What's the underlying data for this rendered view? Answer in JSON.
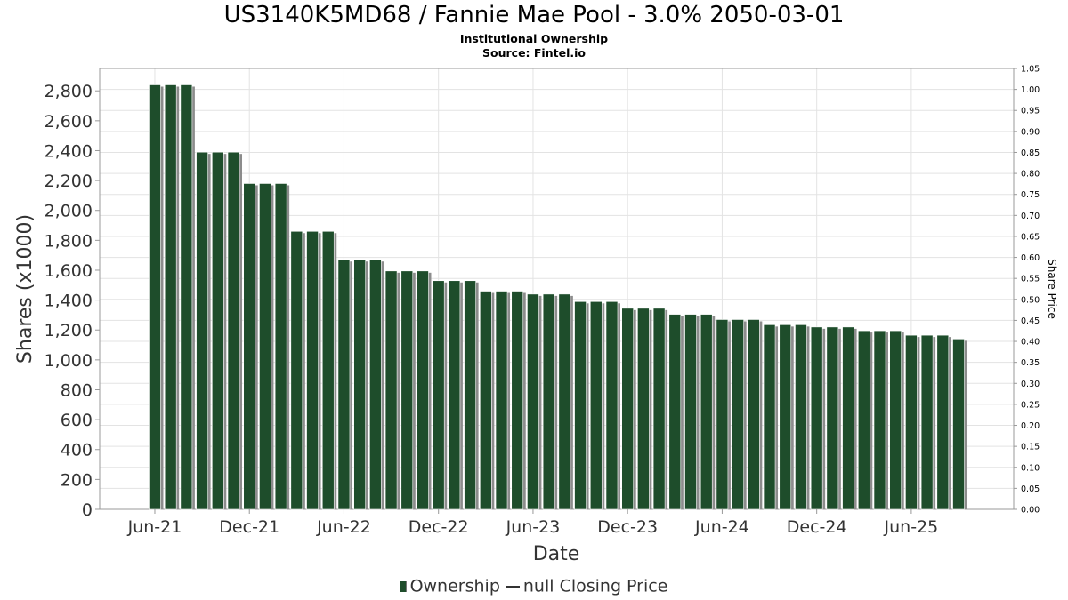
{
  "header": {
    "title": "US3140K5MD68 / Fannie Mae Pool - 3.0% 2050-03-01",
    "subtitle": "Institutional Ownership",
    "source": "Source: Fintel.io"
  },
  "legend": {
    "ownership": "Ownership",
    "closing": "null Closing Price"
  },
  "colors": {
    "bar": "#1e4d2b",
    "shadow": "#8c8c8c",
    "grid": "#e3e3e3",
    "axis_text": "#333333"
  },
  "chart_data": {
    "type": "bar",
    "title": "US3140K5MD68 / Fannie Mae Pool - 3.0% 2050-03-01",
    "subtitle": "Institutional Ownership",
    "xlabel": "Date",
    "ylabel": "Shares (x1000)",
    "y2label": "Share Price",
    "ylim": [
      0,
      2950
    ],
    "y_ticks": [
      0,
      200,
      400,
      600,
      800,
      1000,
      1200,
      1400,
      1600,
      1800,
      2000,
      2200,
      2400,
      2600,
      2800
    ],
    "y_tick_labels": [
      "0",
      "200",
      "400",
      "600",
      "800",
      "1,000",
      "1,200",
      "1,400",
      "1,600",
      "1,800",
      "2,000",
      "2,200",
      "2,400",
      "2,600",
      "2,800"
    ],
    "y2lim": [
      0,
      1.05
    ],
    "y2_tick_labels": [
      "0.00",
      "0.05",
      "0.10",
      "0.15",
      "0.20",
      "0.25",
      "0.30",
      "0.35",
      "0.40",
      "0.45",
      "0.50",
      "0.55",
      "0.60",
      "0.65",
      "0.70",
      "0.75",
      "0.80",
      "0.85",
      "0.90",
      "0.95",
      "1.00",
      "1.05"
    ],
    "x_tick_labels": [
      "Jun-21",
      "Dec-21",
      "Jun-22",
      "Dec-22",
      "Jun-23",
      "Dec-23",
      "Jun-24",
      "Dec-24",
      "Jun-25"
    ],
    "x_start_month": "2021-03",
    "x_end_month": "2025-12",
    "bar_months": [
      "2021-06",
      "2021-07",
      "2021-08",
      "2021-09",
      "2021-10",
      "2021-11",
      "2021-12",
      "2022-01",
      "2022-02",
      "2022-03",
      "2022-04",
      "2022-05",
      "2022-06",
      "2022-07",
      "2022-08",
      "2022-09",
      "2022-10",
      "2022-11",
      "2022-12",
      "2023-01",
      "2023-02",
      "2023-03",
      "2023-04",
      "2023-05",
      "2023-06",
      "2023-07",
      "2023-08",
      "2023-09",
      "2023-10",
      "2023-11",
      "2023-12",
      "2024-01",
      "2024-02",
      "2024-03",
      "2024-04",
      "2024-05",
      "2024-06",
      "2024-07",
      "2024-08",
      "2024-09",
      "2024-10",
      "2024-11",
      "2024-12",
      "2025-01",
      "2025-02",
      "2025-03",
      "2025-04",
      "2025-05",
      "2025-06",
      "2025-07",
      "2025-08",
      "2025-09"
    ],
    "values": [
      2840,
      2840,
      2840,
      2390,
      2390,
      2390,
      2180,
      2180,
      2180,
      1860,
      1860,
      1860,
      1670,
      1670,
      1670,
      1595,
      1595,
      1595,
      1530,
      1530,
      1530,
      1460,
      1460,
      1460,
      1440,
      1440,
      1440,
      1390,
      1390,
      1390,
      1345,
      1345,
      1345,
      1305,
      1305,
      1305,
      1270,
      1270,
      1270,
      1235,
      1235,
      1235,
      1220,
      1220,
      1220,
      1195,
      1195,
      1195,
      1165,
      1165,
      1165,
      1140
    ],
    "grid": true,
    "legend_position": "bottom"
  }
}
